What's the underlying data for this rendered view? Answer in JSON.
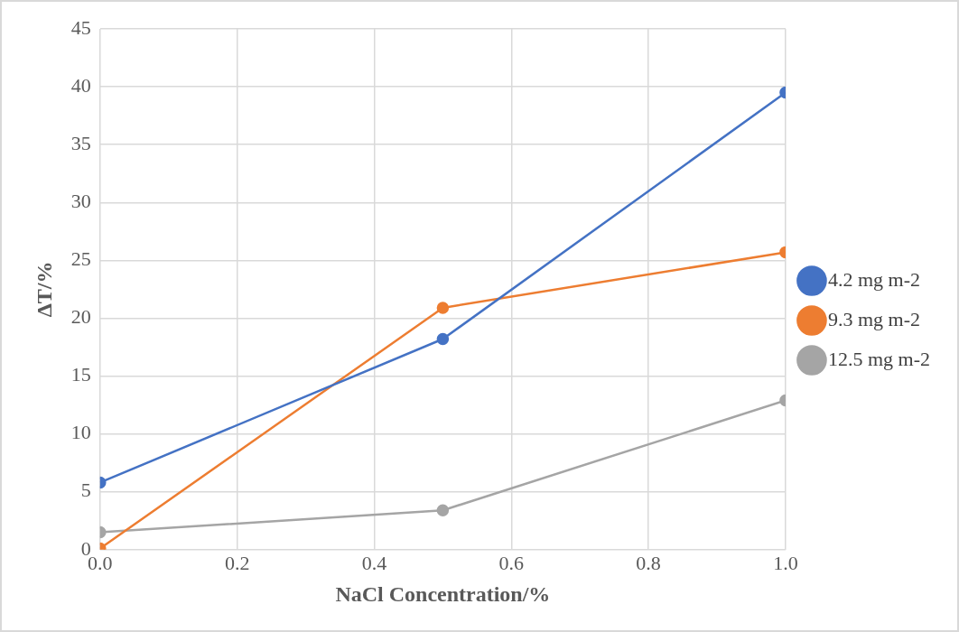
{
  "chart_data": {
    "type": "line",
    "xlabel": "NaCl Concentration/%",
    "ylabel": "ΔT/%",
    "x": [
      0,
      0.5,
      1.0
    ],
    "series": [
      {
        "name": "4.2 mg m-2",
        "color": "#4472c4",
        "values": [
          5.8,
          18.2,
          39.5
        ]
      },
      {
        "name": "9.3 mg m-2",
        "color": "#ed7d31",
        "values": [
          0.1,
          20.9,
          25.7
        ]
      },
      {
        "name": "12.5 mg m-2",
        "color": "#a5a5a5",
        "values": [
          1.5,
          3.4,
          12.9
        ]
      }
    ],
    "xlim": [
      0,
      1
    ],
    "xticks": [
      {
        "value": 0,
        "label": "0.0"
      },
      {
        "value": 0.2,
        "label": "0.2"
      },
      {
        "value": 0.4,
        "label": "0.4"
      },
      {
        "value": 0.6,
        "label": "0.6"
      },
      {
        "value": 0.8,
        "label": "0.8"
      },
      {
        "value": 1,
        "label": "1.0"
      }
    ],
    "ylim": [
      0,
      45
    ],
    "yticks": [
      0,
      5,
      10,
      15,
      20,
      25,
      30,
      35,
      40,
      45
    ],
    "grid": true,
    "legend": "right",
    "marker": "circle",
    "line_style": "solid"
  }
}
